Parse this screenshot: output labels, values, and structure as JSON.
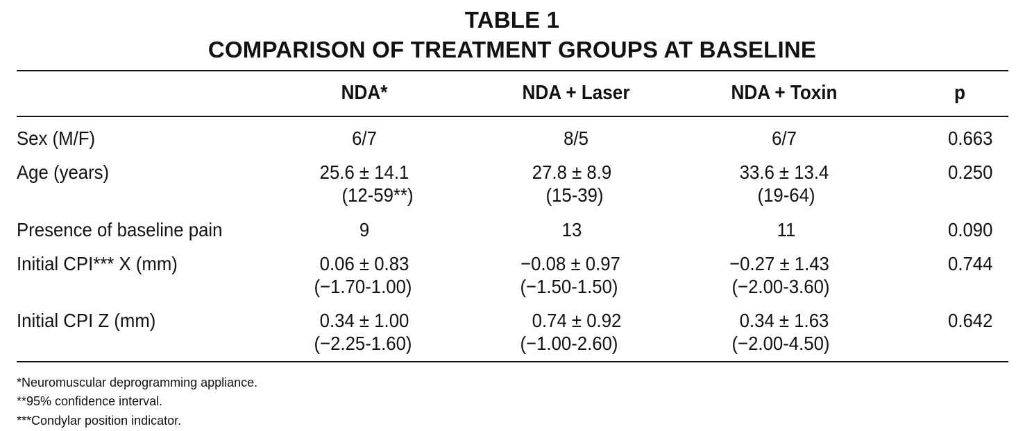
{
  "table": {
    "title_line1": "TABLE 1",
    "title_line2": "COMPARISON OF TREATMENT GROUPS AT BASELINE",
    "headers": [
      "NDA*",
      "NDA + Laser",
      "NDA + Toxin",
      "p"
    ],
    "rows": [
      {
        "label": "Sex (M/F)",
        "nda": [
          "6/7"
        ],
        "laser": [
          "8/5"
        ],
        "toxin": [
          "6/7"
        ],
        "p": "0.663"
      },
      {
        "label": "Age (years)",
        "nda": [
          "25.6 ± 14.1",
          "(12-59**)"
        ],
        "laser": [
          "27.8 ± 8.9",
          "(15-39)"
        ],
        "toxin": [
          "33.6 ± 13.4",
          "(19-64)"
        ],
        "p": "0.250"
      },
      {
        "label": "Presence of baseline pain",
        "nda": [
          "9"
        ],
        "laser": [
          "13"
        ],
        "toxin": [
          "11"
        ],
        "p": "0.090"
      },
      {
        "label": "Initial CPI*** X (mm)",
        "nda": [
          "0.06 ± 0.83",
          "(−1.70-1.00)"
        ],
        "laser": [
          "−0.08 ± 0.97",
          "(−1.50-1.50)"
        ],
        "toxin": [
          "−0.27 ± 1.43",
          "(−2.00-3.60)"
        ],
        "p": "0.744"
      },
      {
        "label": "Initial CPI Z (mm)",
        "nda": [
          "0.34 ± 1.00",
          "(−2.25-1.60)"
        ],
        "laser": [
          "0.74 ± 0.92",
          "(−1.00-2.60)"
        ],
        "toxin": [
          "0.34 ± 1.63",
          "(−2.00-4.50)"
        ],
        "p": "0.642"
      }
    ],
    "footnotes": [
      "*Neuromuscular deprogramming appliance.",
      "**95% confidence interval.",
      "***Condylar position indicator."
    ]
  }
}
